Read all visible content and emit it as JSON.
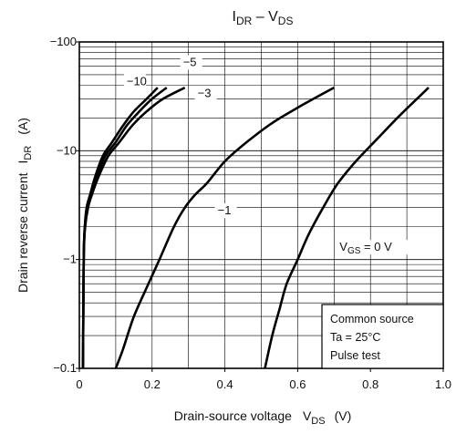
{
  "chart_data": {
    "type": "line",
    "title": {
      "main": "I",
      "main_sub": "DR",
      "sep": " – V",
      "second_sub": "DS"
    },
    "xlabel": {
      "text": "Drain-source voltage",
      "symbol": "V",
      "symbol_sub": "DS",
      "unit": "(V)"
    },
    "ylabel": {
      "text": "Drain reverse current",
      "symbol": "I",
      "symbol_sub": "DR",
      "unit": "(A)"
    },
    "xlim": [
      0,
      1.0
    ],
    "ylim": [
      -0.1,
      -100
    ],
    "yscale": "log",
    "x_ticks": [
      {
        "value": 0,
        "label": "0"
      },
      {
        "value": 0.2,
        "label": "0.2"
      },
      {
        "value": 0.4,
        "label": "0.4"
      },
      {
        "value": 0.6,
        "label": "0.6"
      },
      {
        "value": 0.8,
        "label": "0.8"
      },
      {
        "value": 1.0,
        "label": "1.0"
      }
    ],
    "y_ticks": [
      {
        "value": -0.1,
        "label": "−0.1"
      },
      {
        "value": -1,
        "label": "−1"
      },
      {
        "value": -10,
        "label": "−10"
      },
      {
        "value": -100,
        "label": "−100"
      }
    ],
    "grid": true,
    "series": [
      {
        "name": "−10",
        "label_at": [
          0.13,
          -40
        ],
        "points": [
          [
            0.01,
            -0.1
          ],
          [
            0.012,
            -1
          ],
          [
            0.015,
            -2
          ],
          [
            0.02,
            -3
          ],
          [
            0.03,
            -4
          ],
          [
            0.045,
            -6
          ],
          [
            0.065,
            -9
          ],
          [
            0.09,
            -12
          ],
          [
            0.12,
            -17
          ],
          [
            0.15,
            -23
          ],
          [
            0.185,
            -30
          ],
          [
            0.215,
            -38
          ]
        ]
      },
      {
        "name": "−5",
        "label_at": [
          0.285,
          -60
        ],
        "points": [
          [
            0.01,
            -0.1
          ],
          [
            0.012,
            -1
          ],
          [
            0.015,
            -2
          ],
          [
            0.022,
            -3
          ],
          [
            0.032,
            -4
          ],
          [
            0.05,
            -6
          ],
          [
            0.072,
            -9
          ],
          [
            0.1,
            -12
          ],
          [
            0.13,
            -17
          ],
          [
            0.165,
            -23
          ],
          [
            0.2,
            -30
          ],
          [
            0.24,
            -38
          ]
        ]
      },
      {
        "name": "−3",
        "label_at": [
          0.325,
          -31
        ],
        "points": [
          [
            0.01,
            -0.1
          ],
          [
            0.012,
            -1
          ],
          [
            0.016,
            -2
          ],
          [
            0.024,
            -3
          ],
          [
            0.035,
            -4
          ],
          [
            0.055,
            -6
          ],
          [
            0.08,
            -9
          ],
          [
            0.11,
            -12
          ],
          [
            0.145,
            -17
          ],
          [
            0.185,
            -23
          ],
          [
            0.23,
            -30
          ],
          [
            0.29,
            -38
          ]
        ]
      },
      {
        "name": "−1",
        "label_at": [
          0.38,
          -2.6
        ],
        "points": [
          [
            0.1,
            -0.1
          ],
          [
            0.12,
            -0.15
          ],
          [
            0.15,
            -0.3
          ],
          [
            0.19,
            -0.6
          ],
          [
            0.22,
            -1
          ],
          [
            0.26,
            -2
          ],
          [
            0.29,
            -3
          ],
          [
            0.32,
            -4
          ],
          [
            0.35,
            -5
          ],
          [
            0.4,
            -8
          ],
          [
            0.46,
            -12
          ],
          [
            0.53,
            -18
          ],
          [
            0.61,
            -26
          ],
          [
            0.7,
            -38
          ]
        ]
      },
      {
        "name": "V",
        "name_sub": "GS",
        "name_tail": " = 0 V",
        "label_at": [
          0.715,
          -1.2
        ],
        "points": [
          [
            0.51,
            -0.1
          ],
          [
            0.53,
            -0.2
          ],
          [
            0.55,
            -0.35
          ],
          [
            0.57,
            -0.6
          ],
          [
            0.6,
            -1
          ],
          [
            0.63,
            -1.7
          ],
          [
            0.67,
            -3
          ],
          [
            0.71,
            -5
          ],
          [
            0.76,
            -8
          ],
          [
            0.82,
            -13
          ],
          [
            0.88,
            -21
          ],
          [
            0.96,
            -38
          ]
        ]
      }
    ],
    "annotation": {
      "lines": [
        "Common source",
        "Ta = 25°C",
        "Pulse test"
      ],
      "placement": "bottom-right"
    }
  }
}
